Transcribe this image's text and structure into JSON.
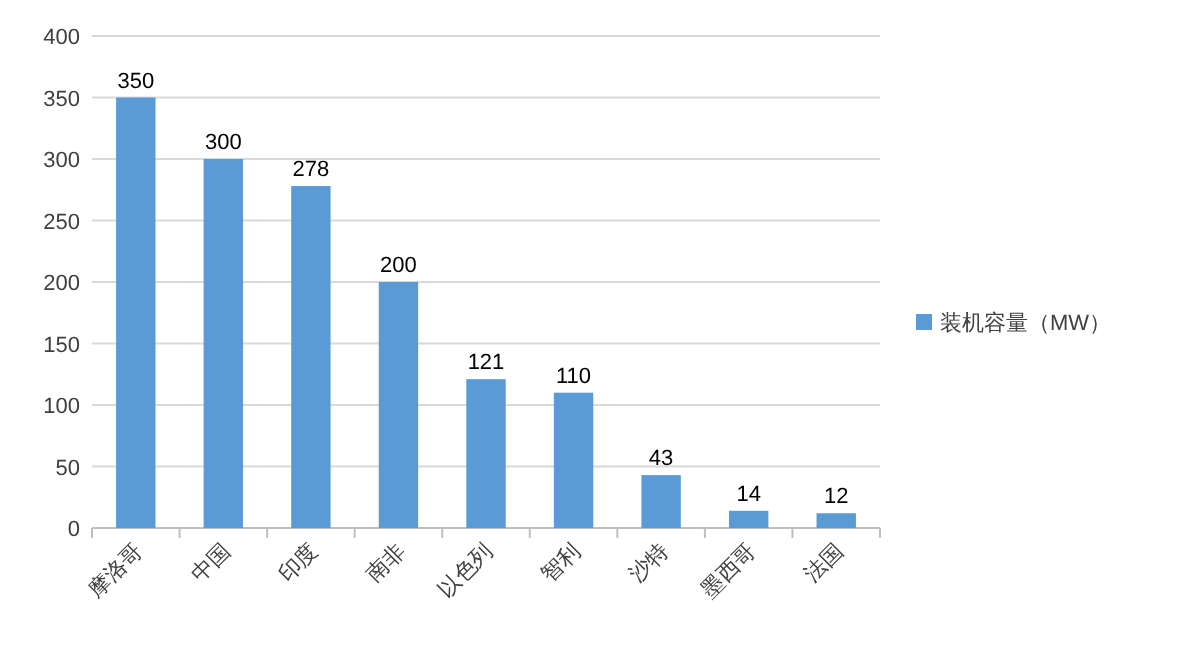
{
  "chart_data": {
    "type": "bar",
    "categories": [
      "摩洛哥",
      "中国",
      "印度",
      "南非",
      "以色列",
      "智利",
      "沙特",
      "墨西哥",
      "法国"
    ],
    "series": [
      {
        "name": "装机容量（MW）",
        "color": "#5b9bd5",
        "values": [
          350,
          300,
          278,
          200,
          121,
          110,
          43,
          14,
          12
        ]
      }
    ],
    "ylim": [
      0,
      400
    ],
    "yticks": [
      0,
      50,
      100,
      150,
      200,
      250,
      300,
      350,
      400
    ],
    "grid": "y",
    "legend": "right",
    "data_labels": true
  }
}
